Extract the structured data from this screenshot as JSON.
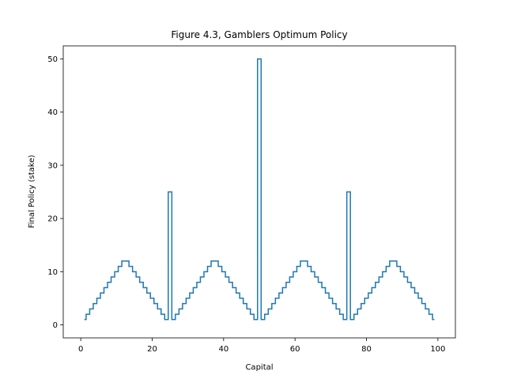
{
  "chart_data": {
    "type": "line",
    "drawstyle": "steps-mid",
    "title": "Figure 4.3, Gamblers Optimum Policy",
    "xlabel": "Capital",
    "ylabel": "Final Policy (stake)",
    "xlim": [
      -4.9,
      104.9
    ],
    "ylim": [
      -2.45,
      52.45
    ],
    "xticks": [
      0,
      20,
      40,
      60,
      80,
      100
    ],
    "yticks": [
      0,
      10,
      20,
      30,
      40,
      50
    ],
    "x_tick_labels": [
      "0",
      "20",
      "40",
      "60",
      "80",
      "100"
    ],
    "y_tick_labels": [
      "0",
      "10",
      "20",
      "30",
      "40",
      "50"
    ],
    "grid": false,
    "series": [
      {
        "color": "#1f77b4",
        "x": [
          1,
          2,
          3,
          4,
          5,
          6,
          7,
          8,
          9,
          10,
          11,
          12,
          13,
          14,
          15,
          16,
          17,
          18,
          19,
          20,
          21,
          22,
          23,
          24,
          25,
          26,
          27,
          28,
          29,
          30,
          31,
          32,
          33,
          34,
          35,
          36,
          37,
          38,
          39,
          40,
          41,
          42,
          43,
          44,
          45,
          46,
          47,
          48,
          49,
          50,
          51,
          52,
          53,
          54,
          55,
          56,
          57,
          58,
          59,
          60,
          61,
          62,
          63,
          64,
          65,
          66,
          67,
          68,
          69,
          70,
          71,
          72,
          73,
          74,
          75,
          76,
          77,
          78,
          79,
          80,
          81,
          82,
          83,
          84,
          85,
          86,
          87,
          88,
          89,
          90,
          91,
          92,
          93,
          94,
          95,
          96,
          97,
          98,
          99
        ],
        "values": [
          1,
          2,
          3,
          4,
          5,
          6,
          7,
          8,
          9,
          10,
          11,
          12,
          12,
          11,
          10,
          9,
          8,
          7,
          6,
          5,
          4,
          3,
          2,
          1,
          25,
          1,
          2,
          3,
          4,
          5,
          6,
          7,
          8,
          9,
          10,
          11,
          12,
          12,
          11,
          10,
          9,
          8,
          7,
          6,
          5,
          4,
          3,
          2,
          1,
          50,
          1,
          2,
          3,
          4,
          5,
          6,
          7,
          8,
          9,
          10,
          11,
          12,
          12,
          11,
          10,
          9,
          8,
          7,
          6,
          5,
          4,
          3,
          2,
          1,
          25,
          1,
          2,
          3,
          4,
          5,
          6,
          7,
          8,
          9,
          10,
          11,
          12,
          12,
          11,
          10,
          9,
          8,
          7,
          6,
          5,
          4,
          3,
          2,
          1
        ]
      }
    ]
  }
}
